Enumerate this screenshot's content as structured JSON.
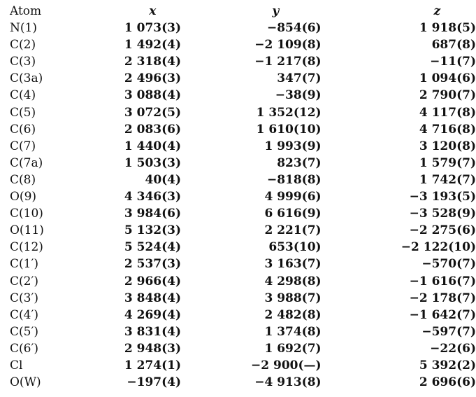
{
  "headers": {
    "atom": "Atom",
    "x": "x",
    "y": "y",
    "z": "z"
  },
  "rows": [
    {
      "atom": "N(1)",
      "x": "1 073(3)",
      "y": "−854(6)",
      "z": "1 918(5)"
    },
    {
      "atom": "C(2)",
      "x": "1 492(4)",
      "y": "−2 109(8)",
      "z": "687(8)"
    },
    {
      "atom": "C(3)",
      "x": "2 318(4)",
      "y": "−1 217(8)",
      "z": "−11(7)"
    },
    {
      "atom": "C(3a)",
      "x": "2 496(3)",
      "y": "347(7)",
      "z": "1 094(6)"
    },
    {
      "atom": "C(4)",
      "x": "3 088(4)",
      "y": "−38(9)",
      "z": "2 790(7)"
    },
    {
      "atom": "C(5)",
      "x": "3 072(5)",
      "y": "1 352(12)",
      "z": "4 117(8)"
    },
    {
      "atom": "C(6)",
      "x": "2 083(6)",
      "y": "1 610(10)",
      "z": "4 716(8)"
    },
    {
      "atom": "C(7)",
      "x": "1 440(4)",
      "y": "1 993(9)",
      "z": "3 120(8)"
    },
    {
      "atom": "C(7a)",
      "x": "1 503(3)",
      "y": "823(7)",
      "z": "1 579(7)"
    },
    {
      "atom": "C(8)",
      "x": "40(4)",
      "y": "−818(8)",
      "z": "1 742(7)"
    },
    {
      "atom": "O(9)",
      "x": "4 346(3)",
      "y": "4 999(6)",
      "z": "−3 193(5)"
    },
    {
      "atom": "C(10)",
      "x": "3 984(6)",
      "y": "6 616(9)",
      "z": "−3 528(9)"
    },
    {
      "atom": "O(11)",
      "x": "5 132(3)",
      "y": "2 221(7)",
      "z": "−2 275(6)"
    },
    {
      "atom": "C(12)",
      "x": "5 524(4)",
      "y": "653(10)",
      "z": "−2 122(10)"
    },
    {
      "atom": "C(1′)",
      "x": "2 537(3)",
      "y": "3 163(7)",
      "z": "−570(7)"
    },
    {
      "atom": "C(2′)",
      "x": "2 966(4)",
      "y": "4 298(8)",
      "z": "−1 616(7)"
    },
    {
      "atom": "C(3′)",
      "x": "3 848(4)",
      "y": "3 988(7)",
      "z": "−2 178(7)"
    },
    {
      "atom": "C(4′)",
      "x": "4 269(4)",
      "y": "2 482(8)",
      "z": "−1 642(7)"
    },
    {
      "atom": "C(5′)",
      "x": "3 831(4)",
      "y": "1 374(8)",
      "z": "−597(7)"
    },
    {
      "atom": "C(6′)",
      "x": "2 948(3)",
      "y": "1 692(7)",
      "z": "−22(6)"
    },
    {
      "atom": "Cl",
      "x": "1 274(1)",
      "y": "−2 900(—)",
      "z": "5 392(2)"
    },
    {
      "atom": " O(W)",
      "x": "−197(4)",
      "y": "−4 913(8)",
      "z": "2 696(6)"
    }
  ]
}
